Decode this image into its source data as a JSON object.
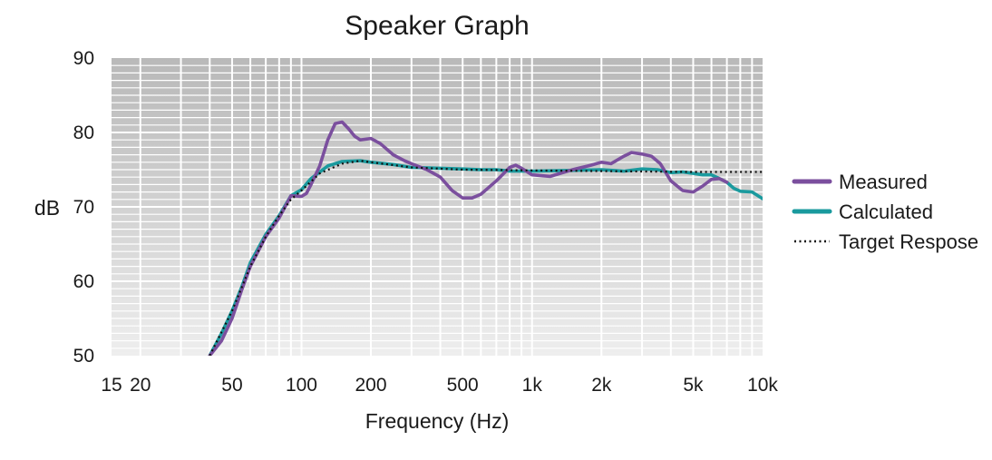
{
  "chart_data": {
    "type": "line",
    "title": "Speaker Graph",
    "xlabel": "Frequency (Hz)",
    "ylabel": "dB",
    "x_scale": "log",
    "xlim": [
      15,
      10000
    ],
    "ylim": [
      50,
      90
    ],
    "grid": true,
    "legend_position": "right",
    "x_ticks": [
      {
        "value": 15,
        "label": "15"
      },
      {
        "value": 20,
        "label": "20"
      },
      {
        "value": 50,
        "label": "50"
      },
      {
        "value": 100,
        "label": "100"
      },
      {
        "value": 200,
        "label": "200"
      },
      {
        "value": 500,
        "label": "500"
      },
      {
        "value": 1000,
        "label": "1k"
      },
      {
        "value": 2000,
        "label": "2k"
      },
      {
        "value": 5000,
        "label": "5k"
      },
      {
        "value": 10000,
        "label": "10k"
      }
    ],
    "y_ticks": [
      {
        "value": 50,
        "label": "50"
      },
      {
        "value": 60,
        "label": "60"
      },
      {
        "value": 70,
        "label": "70"
      },
      {
        "value": 80,
        "label": "80"
      },
      {
        "value": 90,
        "label": "90"
      }
    ],
    "series": [
      {
        "name": "Measured",
        "color": "#7b4f9e",
        "style": "solid",
        "points": [
          [
            40,
            50
          ],
          [
            45,
            52
          ],
          [
            50,
            55
          ],
          [
            55,
            58.8
          ],
          [
            60,
            62
          ],
          [
            70,
            66
          ],
          [
            80,
            68.5
          ],
          [
            90,
            71.5
          ],
          [
            100,
            71.4
          ],
          [
            105,
            71.8
          ],
          [
            110,
            73
          ],
          [
            120,
            75.5
          ],
          [
            130,
            79
          ],
          [
            140,
            81.2
          ],
          [
            150,
            81.4
          ],
          [
            160,
            80.5
          ],
          [
            170,
            79.5
          ],
          [
            180,
            79
          ],
          [
            200,
            79.2
          ],
          [
            220,
            78.5
          ],
          [
            250,
            77
          ],
          [
            280,
            76.2
          ],
          [
            300,
            75.8
          ],
          [
            350,
            75
          ],
          [
            400,
            74
          ],
          [
            450,
            72.2
          ],
          [
            500,
            71.2
          ],
          [
            550,
            71.2
          ],
          [
            600,
            71.7
          ],
          [
            700,
            73.5
          ],
          [
            800,
            75.3
          ],
          [
            850,
            75.6
          ],
          [
            900,
            75.2
          ],
          [
            1000,
            74.3
          ],
          [
            1200,
            74.1
          ],
          [
            1500,
            75
          ],
          [
            1800,
            75.6
          ],
          [
            2000,
            76
          ],
          [
            2200,
            75.8
          ],
          [
            2500,
            76.8
          ],
          [
            2700,
            77.3
          ],
          [
            3000,
            77.1
          ],
          [
            3300,
            76.8
          ],
          [
            3600,
            75.8
          ],
          [
            4000,
            73.5
          ],
          [
            4500,
            72.2
          ],
          [
            5000,
            72
          ],
          [
            5500,
            72.8
          ],
          [
            6000,
            73.7
          ],
          [
            6500,
            73.8
          ],
          [
            7000,
            73.3
          ]
        ]
      },
      {
        "name": "Calculated",
        "color": "#1a9a9e",
        "style": "solid",
        "points": [
          [
            40,
            50
          ],
          [
            45,
            53
          ],
          [
            50,
            56
          ],
          [
            55,
            59.2
          ],
          [
            60,
            62.5
          ],
          [
            70,
            66.3
          ],
          [
            80,
            68.8
          ],
          [
            90,
            71.5
          ],
          [
            100,
            72.3
          ],
          [
            110,
            73.8
          ],
          [
            130,
            75.5
          ],
          [
            150,
            76.1
          ],
          [
            180,
            76.2
          ],
          [
            200,
            76
          ],
          [
            250,
            75.7
          ],
          [
            300,
            75.3
          ],
          [
            400,
            75.2
          ],
          [
            500,
            75.1
          ],
          [
            600,
            75
          ],
          [
            700,
            75
          ],
          [
            800,
            74.8
          ],
          [
            1000,
            74.8
          ],
          [
            1500,
            74.9
          ],
          [
            2000,
            75
          ],
          [
            2500,
            74.8
          ],
          [
            3000,
            75.1
          ],
          [
            3500,
            75
          ],
          [
            4000,
            74.6
          ],
          [
            4500,
            74.7
          ],
          [
            5000,
            74.5
          ],
          [
            5500,
            74.3
          ],
          [
            6000,
            74.3
          ],
          [
            6500,
            73.8
          ],
          [
            7000,
            73.3
          ],
          [
            7500,
            72.5
          ],
          [
            8000,
            72.1
          ],
          [
            9000,
            72
          ],
          [
            10000,
            71.1
          ]
        ]
      },
      {
        "name": "Target Respose",
        "color": "#111111",
        "style": "dotted",
        "points": [
          [
            40,
            50
          ],
          [
            50,
            56
          ],
          [
            60,
            62
          ],
          [
            70,
            66
          ],
          [
            80,
            68.8
          ],
          [
            90,
            71
          ],
          [
            100,
            72.2
          ],
          [
            120,
            74.5
          ],
          [
            150,
            75.8
          ],
          [
            180,
            76.2
          ],
          [
            200,
            76
          ],
          [
            300,
            75.3
          ],
          [
            500,
            75
          ],
          [
            1000,
            74.9
          ],
          [
            2000,
            74.8
          ],
          [
            5000,
            74.7
          ],
          [
            10000,
            74.7
          ]
        ]
      }
    ]
  }
}
